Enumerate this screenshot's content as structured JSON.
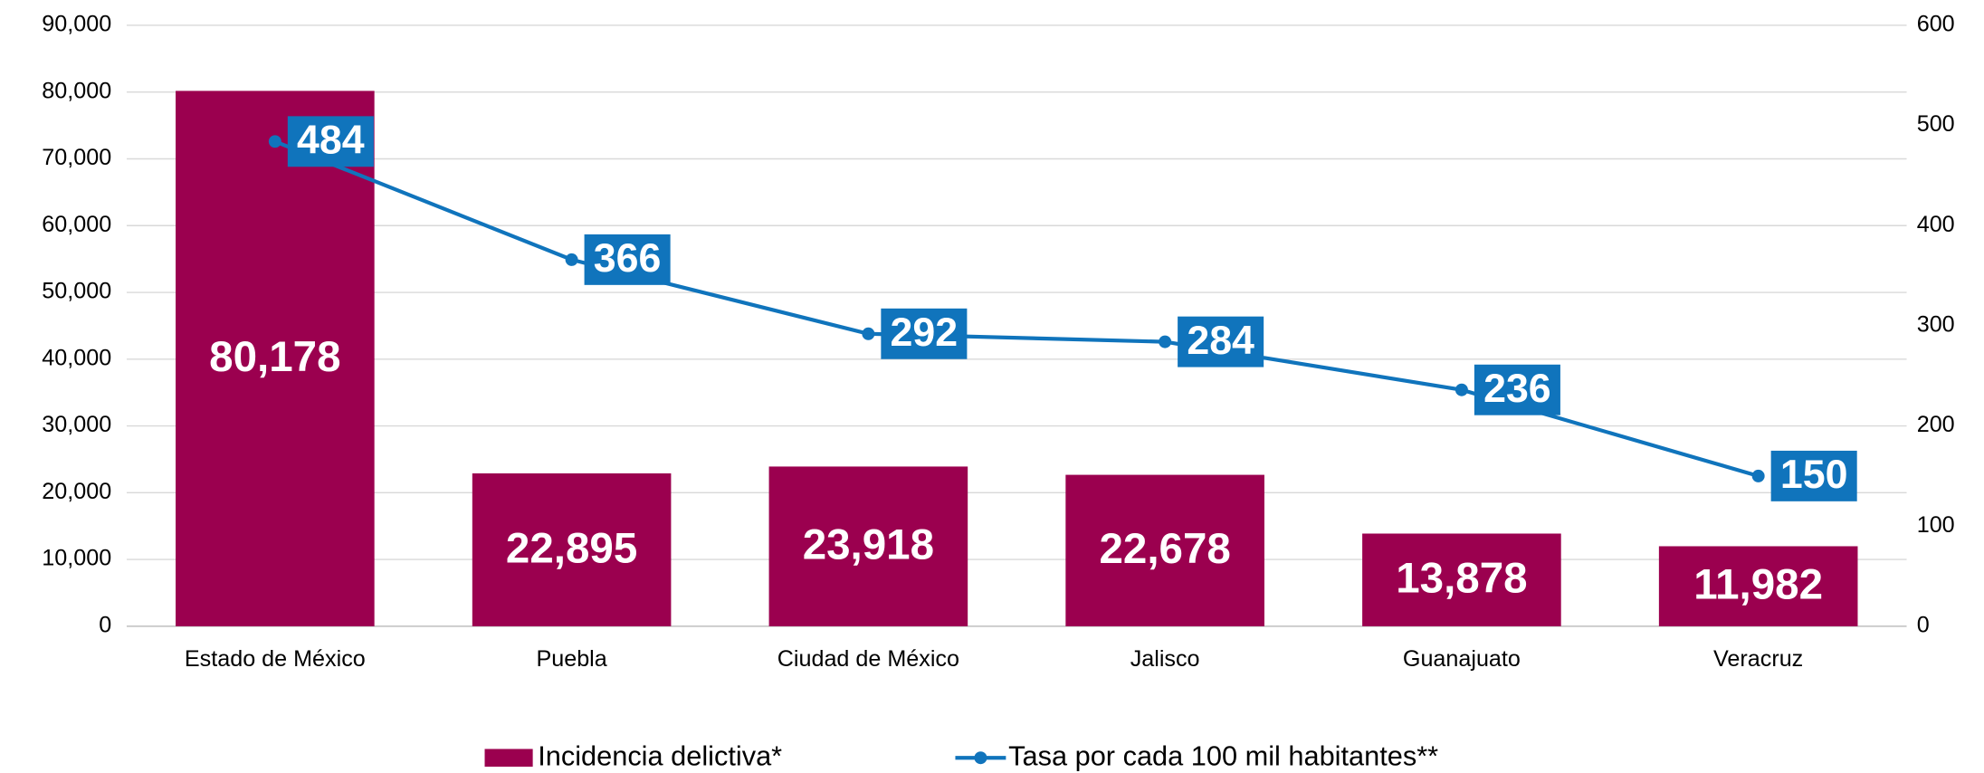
{
  "chart_data": {
    "type": "bar",
    "categories": [
      "Estado de México",
      "Puebla",
      "Ciudad de México",
      "Jalisco",
      "Guanajuato",
      "Veracruz"
    ],
    "series": [
      {
        "name": "Incidencia delictiva*",
        "type": "bar",
        "color": "#9b004f",
        "values": [
          80178,
          22895,
          23918,
          22678,
          13878,
          11982
        ],
        "value_labels": [
          "80,178",
          "22,895",
          "23,918",
          "22,678",
          "13,878",
          "11,982"
        ]
      },
      {
        "name": "Tasa por cada 100 mil habitantes**",
        "type": "line",
        "color": "#1074bc",
        "axis": "y2",
        "values": [
          484,
          366,
          292,
          284,
          236,
          150
        ]
      }
    ],
    "ylim": [
      0,
      90000
    ],
    "yticks": [
      0,
      {
        "value": 10000,
        "label": "10,000"
      },
      {
        "value": 20000,
        "label": "20,000"
      },
      {
        "value": 30000,
        "label": "30,000"
      },
      {
        "value": 40000,
        "label": "40,000"
      },
      {
        "value": 50000,
        "label": "50,000"
      },
      {
        "value": 60000,
        "label": "60,000"
      },
      {
        "value": 70000,
        "label": "70,000"
      },
      {
        "value": 80000,
        "label": "80,000"
      },
      {
        "value": 90000,
        "label": "90,000"
      }
    ],
    "y2lim": [
      0,
      600
    ],
    "y2ticks": [
      0,
      100,
      200,
      300,
      400,
      500,
      600
    ],
    "grid": true,
    "legend": "bottom"
  }
}
